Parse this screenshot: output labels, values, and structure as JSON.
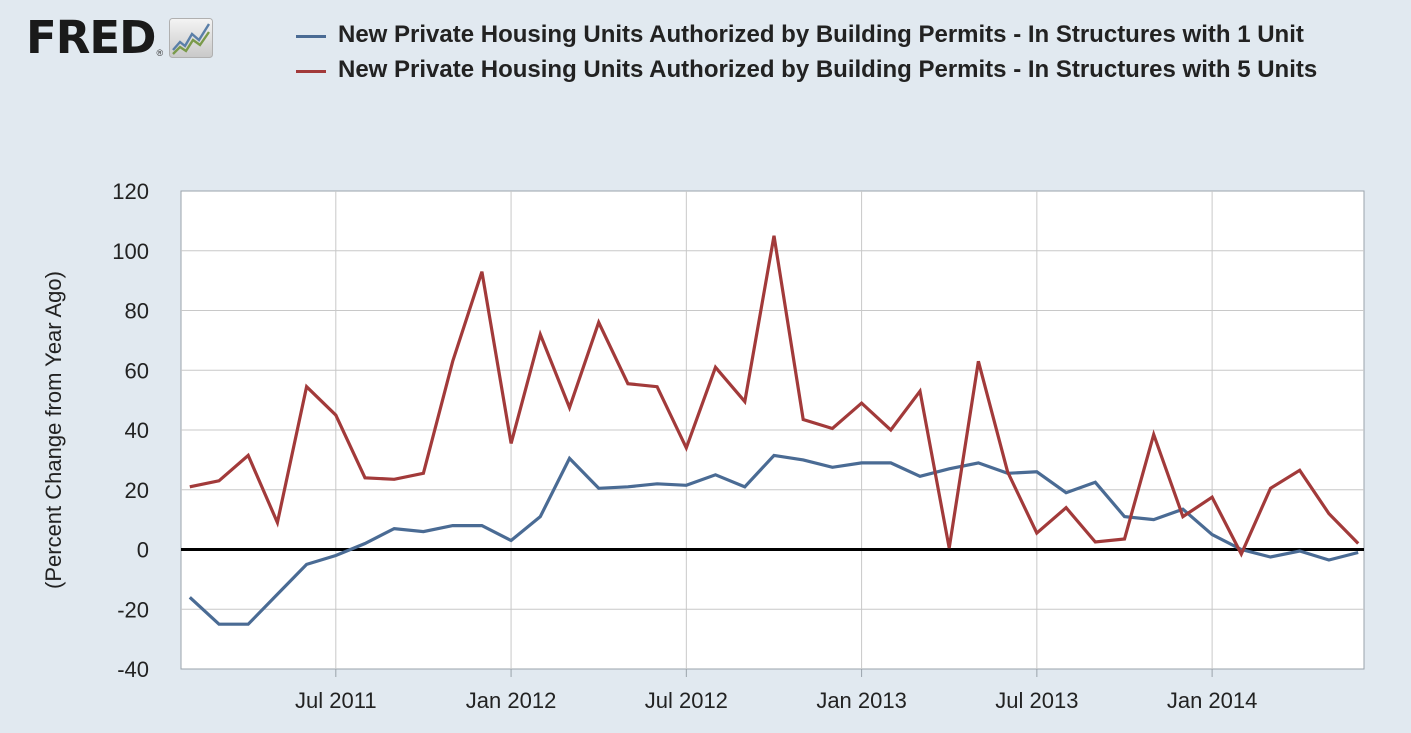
{
  "logo": {
    "text": "FRED",
    "reg": "®",
    "icon": "trend-line-chart-icon"
  },
  "chart_data": {
    "type": "line",
    "title": "",
    "ylabel": "(Percent Change from Year Ago)",
    "xlabel": "",
    "ylim": [
      -40,
      120
    ],
    "yticks": [
      -40,
      -20,
      0,
      20,
      40,
      60,
      80,
      100,
      120
    ],
    "x": [
      "2011-02",
      "2011-03",
      "2011-04",
      "2011-05",
      "2011-06",
      "2011-07",
      "2011-08",
      "2011-09",
      "2011-10",
      "2011-11",
      "2011-12",
      "2012-01",
      "2012-02",
      "2012-03",
      "2012-04",
      "2012-05",
      "2012-06",
      "2012-07",
      "2012-08",
      "2012-09",
      "2012-10",
      "2012-11",
      "2012-12",
      "2013-01",
      "2013-02",
      "2013-03",
      "2013-04",
      "2013-05",
      "2013-06",
      "2013-07",
      "2013-08",
      "2013-09",
      "2013-10",
      "2013-11",
      "2013-12",
      "2014-01",
      "2014-02",
      "2014-03",
      "2014-04",
      "2014-05",
      "2014-06"
    ],
    "xticks": [
      {
        "label": "Jul 2011",
        "index": 5
      },
      {
        "label": "Jan 2012",
        "index": 11
      },
      {
        "label": "Jul 2012",
        "index": 17
      },
      {
        "label": "Jan 2013",
        "index": 23
      },
      {
        "label": "Jul 2013",
        "index": 29
      },
      {
        "label": "Jan 2014",
        "index": 35
      }
    ],
    "series": [
      {
        "name": "New Private Housing Units Authorized by Building Permits - In Structures with 1 Unit",
        "color": "#4a6b94",
        "values": [
          -16,
          -25,
          -25,
          -15,
          -5,
          -2,
          2,
          7,
          6,
          8,
          8,
          3,
          11,
          30.5,
          20.5,
          21,
          22,
          21.5,
          25,
          21,
          31.5,
          30,
          27.5,
          29,
          29,
          24.5,
          27,
          29,
          25.5,
          26,
          19,
          22.5,
          11,
          10,
          13.5,
          5,
          0,
          -2.5,
          -0.5,
          -3.5,
          -1
        ]
      },
      {
        "name": "New Private Housing Units Authorized by Building Permits - In Structures with 5 Units",
        "color": "#a23a3a",
        "values": [
          21,
          23,
          31.5,
          9,
          54.5,
          45,
          24,
          23.5,
          25.5,
          63,
          93,
          35.5,
          72,
          47.5,
          76,
          55.5,
          54.5,
          34,
          61,
          49.5,
          105,
          43.5,
          40.5,
          49,
          40,
          53,
          0.5,
          63,
          26,
          5.5,
          14,
          2.5,
          3.5,
          38.5,
          11,
          17.5,
          -1.5,
          20.5,
          26.5,
          12,
          2
        ]
      }
    ],
    "grid": true,
    "legend_position": "top"
  }
}
